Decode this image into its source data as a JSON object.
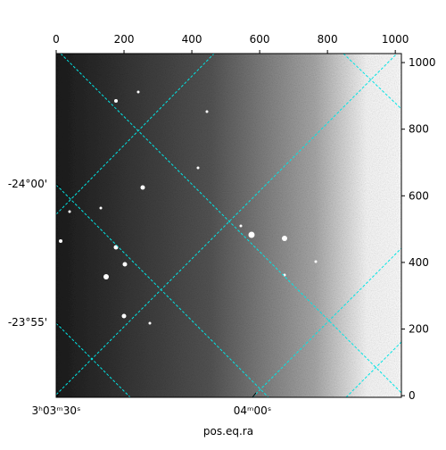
{
  "chart_data": {
    "type": "image",
    "xlabel": "pos.eq.ra",
    "xlim": [
      0,
      1018
    ],
    "xticks": [
      0,
      200,
      400,
      600,
      800,
      1000
    ],
    "ylim": [
      -5,
      1027
    ],
    "yticks": [
      0,
      200,
      400,
      600,
      800,
      1000
    ],
    "ra_lim": [
      45.875,
      46.0949
    ],
    "ra_ticks": [
      {
        "value": 45.875,
        "label": "3ʰ03ᵐ30ˢ"
      },
      {
        "value": 46.0,
        "label": "04ᵐ00ˢ"
      }
    ],
    "dec_lim": [
      -23.8716,
      -24.0785
    ],
    "dec_ticks": [
      {
        "value": -24.0,
        "label": "-24°00'"
      },
      {
        "value": -23.9167,
        "label": "-23°55'"
      }
    ],
    "grid_color": "#00e5e5"
  }
}
